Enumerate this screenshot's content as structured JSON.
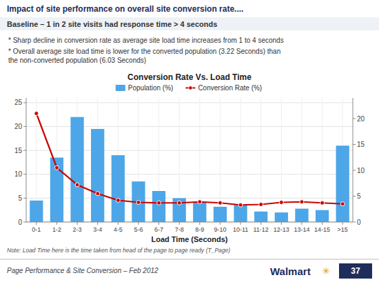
{
  "title": "Impact of site performance on overall site conversion rate....",
  "subtitle": "Baseline – 1 in 2 site visits had response time > 4 seconds",
  "annotations": [
    "* Sharp decline in conversion rate as average site load time increases from 1 to 4 seconds",
    "* Overall average site load time is lower for the converted population (3.22 Seconds) than\nthe non-converted population (6.03 Seconds)",
    "Note: Load Time here is the time taken from head of the page to page ready (T_Page)",
    "Page Performance & Site Conversion – Feb 2012",
    "Walmart",
    "✳",
    "37"
  ],
  "chart_data": {
    "type": "bar",
    "title": "Conversion Rate Vs. Load Time",
    "x_label": "Load Time (Seconds)",
    "categories": [
      "0-1",
      "1-2",
      "2-3",
      "3-4",
      "4-5",
      "5-6",
      "6-7",
      "7-8",
      "8-9",
      "9-10",
      "10-11",
      "11-12",
      "12-13",
      "13-14",
      "14-15",
      ">15"
    ],
    "series": [
      {
        "name": "Population (%)",
        "type": "bar",
        "color": "#4da6e8",
        "values": [
          4.5,
          13.5,
          22.0,
          19.5,
          14.0,
          8.5,
          6.5,
          5.0,
          4.2,
          3.2,
          3.6,
          2.2,
          2.0,
          2.8,
          2.5,
          16.0
        ]
      },
      {
        "name": "Conversion Rate (%)",
        "type": "line",
        "color": "#cc0000",
        "marker": "circle",
        "axis": "y2",
        "values": [
          21.0,
          10.5,
          7.2,
          5.5,
          4.2,
          3.8,
          3.7,
          3.7,
          3.9,
          3.7,
          3.3,
          3.4,
          3.8,
          3.9,
          3.7,
          3.5
        ]
      }
    ],
    "ylim": [
      0,
      26
    ],
    "yticks": [
      0,
      5,
      10,
      15,
      20,
      25
    ],
    "y2lim": [
      0,
      24
    ],
    "y2ticks": [
      0,
      5,
      10,
      15,
      20
    ],
    "grid": true,
    "legend": "top"
  }
}
